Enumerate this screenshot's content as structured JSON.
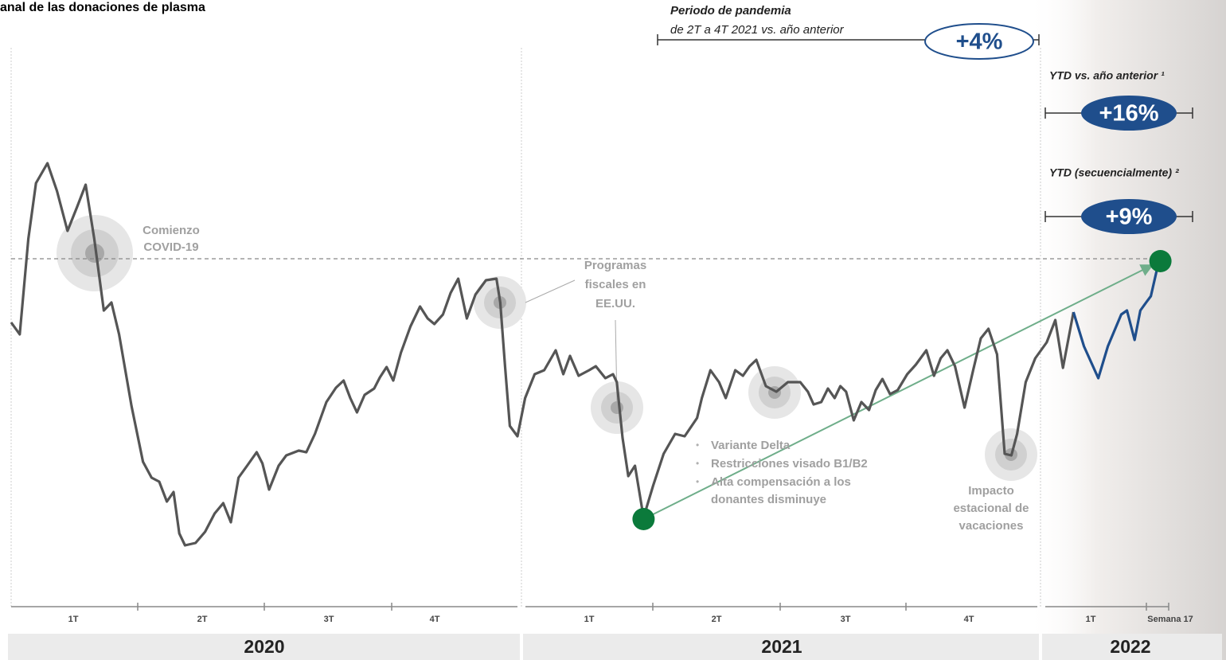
{
  "chart_data": {
    "type": "line",
    "title": "anal de las donaciones de plasma",
    "xlim": [
      0,
      121
    ],
    "ylim": [
      0,
      100
    ],
    "reference_line": 75,
    "series": [
      {
        "color": "#555555",
        "x": [
          0,
          0.9,
          1.8,
          2.6,
          3.8,
          4.8,
          5.9,
          6.9,
          7.8,
          8.7,
          9.7,
          10.5,
          11.3,
          12.6,
          13.8,
          14.7,
          15.5,
          16.3,
          17,
          17.6,
          18.2,
          19.3,
          20.3,
          21.3,
          22.2,
          23,
          23.8,
          24.7,
          25.7,
          26.3,
          27,
          28,
          28.8,
          30.1,
          30.9,
          31.8,
          33,
          34,
          34.8,
          35.5,
          36.2,
          37,
          38,
          38.6,
          39.3,
          40,
          40.8,
          41.8,
          42.8,
          43.6,
          44.3,
          45.2,
          46,
          46.8,
          47.7,
          48.6,
          49.7,
          50.8,
          51.2,
          51.7,
          52.2,
          53,
          53.8,
          54.8,
          55.8,
          57,
          57.8,
          58.5,
          59.4,
          60.5,
          61.2,
          62.2,
          63,
          63.4,
          64,
          64.6,
          65.3,
          66.2,
          67.2,
          68.3,
          69.5,
          70.5,
          71.8,
          72.3,
          73.2,
          74.1,
          74.8,
          75.8,
          76.6,
          77.3,
          78,
          79,
          80.1,
          81.3,
          82.6,
          83.4,
          84,
          84.8,
          85.5,
          86.2,
          86.8,
          87.4,
          88.2,
          89,
          89.8,
          90.5,
          91.2,
          92,
          92.8,
          93.8,
          94.7,
          95.8,
          96.6,
          97.3,
          98,
          98.8,
          99.8,
          100.7,
          101.5,
          102.3,
          103.2,
          104,
          104.7,
          105.3,
          106.2,
          107.2,
          108.4,
          109.3,
          110.1,
          111.2
        ],
        "values": [
          59,
          56,
          80,
          94,
          99,
          92,
          82,
          88,
          93.6,
          80,
          62,
          64,
          56,
          38,
          24,
          20,
          19,
          14,
          16.4,
          6,
          3,
          3.6,
          6.4,
          11,
          13.6,
          8.8,
          20,
          23,
          26.4,
          23.6,
          17,
          23,
          25.6,
          26.8,
          26.4,
          31,
          39,
          42.6,
          44.4,
          40,
          36.4,
          40.8,
          42.4,
          45.2,
          47.8,
          44.4,
          51.4,
          58,
          63,
          60,
          58.6,
          61,
          66.4,
          70,
          60,
          66,
          69.6,
          70,
          64,
          48,
          33,
          30.4,
          40,
          46,
          47,
          52,
          46,
          50.6,
          45.6,
          47,
          48,
          45,
          46,
          44,
          30,
          20.4,
          23,
          10,
          18,
          26,
          31,
          30.4,
          35,
          40,
          47,
          44,
          40,
          47,
          45.6,
          48,
          49.6,
          43,
          41.6,
          44,
          44,
          41.6,
          38.4,
          39,
          42.4,
          40,
          43,
          41.6,
          34.4,
          39,
          37,
          42,
          44.8,
          41,
          42,
          46,
          48.4,
          52,
          45.6,
          50,
          52,
          48,
          37.6,
          47,
          55,
          57.4,
          51,
          26,
          25.6,
          31,
          44,
          50,
          54,
          59.6,
          47.6,
          61.6
        ]
      },
      {
        "color": "#1f4e8c",
        "x": [
          111.2,
          112.3,
          113.8,
          114.8,
          116.2,
          116.8,
          117.6,
          118.2,
          118.8,
          119.3,
          120.1
        ],
        "values": [
          61.6,
          53,
          45,
          53,
          61,
          62,
          54.6,
          62,
          64,
          65.6,
          74
        ]
      }
    ],
    "markers": [
      {
        "x": 66.2,
        "value": 9.6,
        "color": "#0b7a3b"
      },
      {
        "x": 120.3,
        "value": 74.4,
        "color": "#0b7a3b"
      }
    ],
    "trend_color": "#6fae8a",
    "annotations": [
      {
        "lines": [
          "Comienzo",
          "COVID-19"
        ]
      },
      {
        "lines": [
          "Programas",
          "fiscales en",
          "EE.UU."
        ]
      },
      {
        "lines": [
          "Variante Delta",
          "Restricciones visado B1/B2",
          "Alta compensación a los",
          "donantes disminuye"
        ]
      },
      {
        "lines": [
          "Impacto",
          "estacional de",
          "vacaciones"
        ]
      }
    ],
    "comparisons": [
      {
        "label": "Periodo de pandemia",
        "sublabel": "de 2T a 4T 2021 vs. año anterior",
        "value": "+4%"
      },
      {
        "label": "YTD vs. año anterior ¹",
        "value": "+16%"
      },
      {
        "label": "YTD (secuencialmente) ²",
        "value": "+9%"
      }
    ],
    "quarters": [
      "1T",
      "2T",
      "3T",
      "4T",
      "1T",
      "2T",
      "3T",
      "4T",
      "1T",
      "Semana 17"
    ],
    "years": [
      "2020",
      "2021",
      "2022"
    ]
  }
}
